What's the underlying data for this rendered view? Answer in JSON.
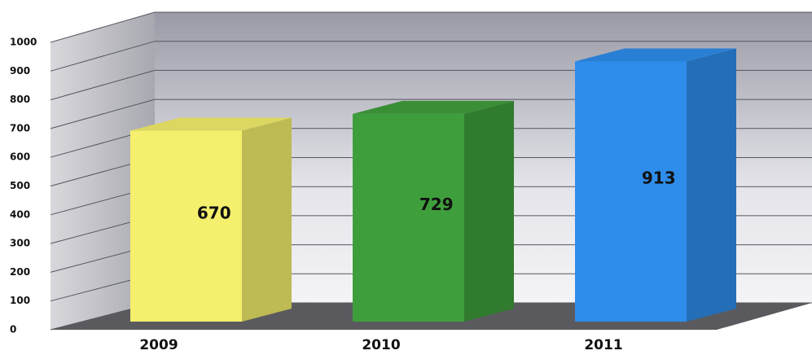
{
  "chart_data": {
    "type": "bar3d",
    "categories": [
      "2009",
      "2010",
      "2011"
    ],
    "values": [
      670,
      729,
      913
    ],
    "colors": [
      "#f4ef6c",
      "#3f9e3c",
      "#2e8deb"
    ],
    "ylim": [
      0,
      1000
    ],
    "yticks": [
      0,
      100,
      200,
      300,
      400,
      500,
      600,
      700,
      800,
      900,
      1000
    ],
    "grid": true
  }
}
